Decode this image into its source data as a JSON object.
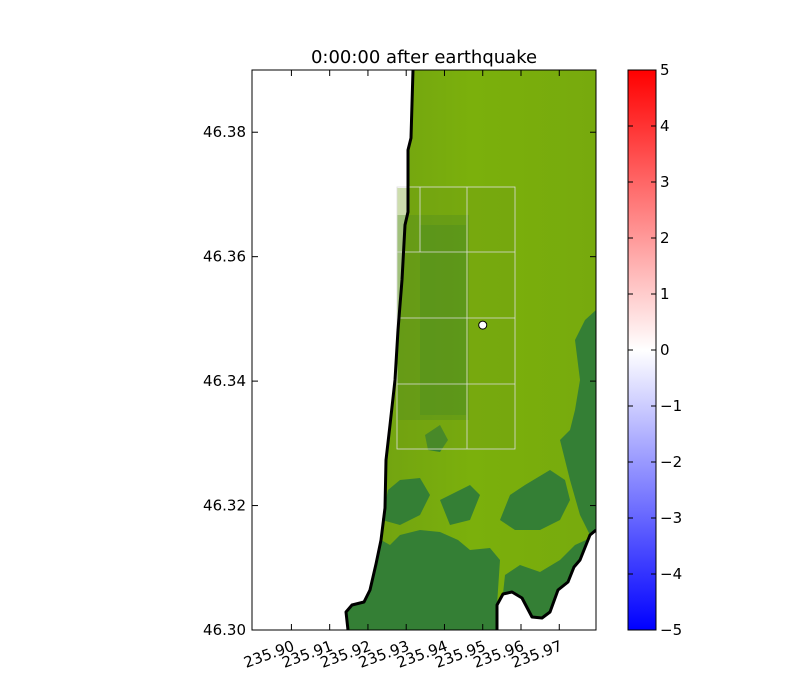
{
  "chart_data": {
    "type": "heatmap",
    "title": "0:00:00 after earthquake",
    "xlabel": "",
    "ylabel": "",
    "xlim": [
      235.8897,
      235.9796
    ],
    "ylim": [
      46.3,
      46.39
    ],
    "x_ticks": [
      235.9,
      235.91,
      235.92,
      235.93,
      235.94,
      235.95,
      235.96,
      235.97
    ],
    "x_tick_labels": [
      "235.90",
      "235.91",
      "235.92",
      "235.93",
      "235.94",
      "235.95",
      "235.96",
      "235.97"
    ],
    "y_ticks": [
      46.3,
      46.32,
      46.34,
      46.36,
      46.38
    ],
    "y_tick_labels": [
      "46.30",
      "46.32",
      "46.34",
      "46.36",
      "46.38"
    ],
    "colorbar": {
      "min": -5,
      "max": 5,
      "ticks": [
        5,
        4,
        3,
        2,
        1,
        0,
        -1,
        -2,
        -3,
        -4,
        -5
      ],
      "tick_labels": [
        "5",
        "4",
        "3",
        "2",
        "1",
        "0",
        "−1",
        "−2",
        "−3",
        "−4",
        "−5"
      ],
      "colormap": [
        "#0000ff",
        "#ffffff",
        "#ff0000"
      ]
    },
    "grid": false,
    "marker": {
      "x": 235.95,
      "y": 46.349
    },
    "colors": {
      "land_light": "#79ad0e",
      "land_dark": "#347f35",
      "water": "#ffffff",
      "coastline": "#000000",
      "patch_lines": "#dcdcdc"
    }
  }
}
